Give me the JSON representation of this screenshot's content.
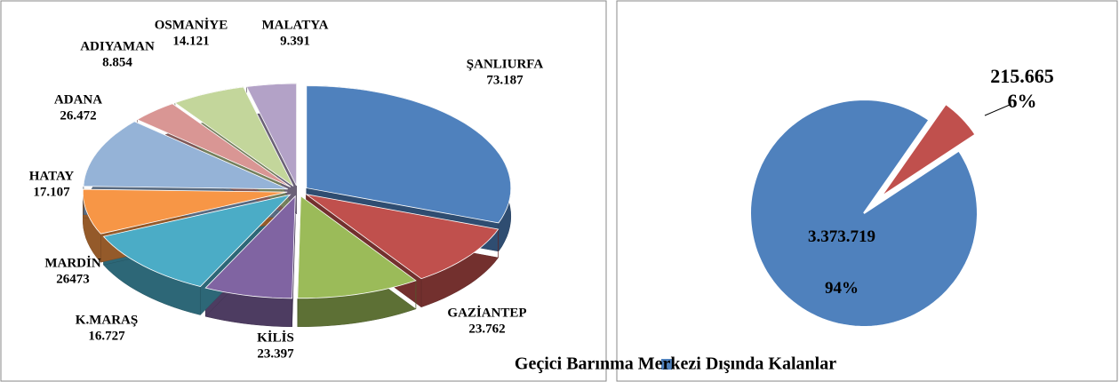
{
  "chart_data": [
    {
      "type": "pie3d",
      "categories": [
        "ŞANLIURFA",
        "GAZİANTEP",
        "KİLİS",
        "K.MARAŞ",
        "MARDİN",
        "HATAY",
        "ADANA",
        "ADIYAMAN",
        "OSMANİYE",
        "MALATYA"
      ],
      "values": [
        73187,
        23762,
        23397,
        16727,
        26473,
        17107,
        26472,
        8854,
        14121,
        9391
      ],
      "value_labels": [
        "73.187",
        "23.762",
        "23.397",
        "16.727",
        "26473",
        "17.107",
        "26.472",
        "8.854",
        "14.121",
        "9.391"
      ],
      "colors": [
        "#4f81bd",
        "#c0504d",
        "#9bbb59",
        "#8064a2",
        "#4bacc6",
        "#f79646",
        "#95b3d7",
        "#d99694",
        "#c3d69b",
        "#b3a2c7"
      ]
    },
    {
      "type": "pie",
      "categories": [
        null,
        "Geçici Barınma Merkezi Dışında Kalanlar"
      ],
      "values": [
        215665,
        3373719
      ],
      "value_labels": [
        "215.665",
        "3.373.719"
      ],
      "percents": [
        6,
        94
      ],
      "percent_labels": [
        "6%",
        "94%"
      ],
      "colors": [
        "#c0504d",
        "#4f81bd"
      ]
    }
  ]
}
